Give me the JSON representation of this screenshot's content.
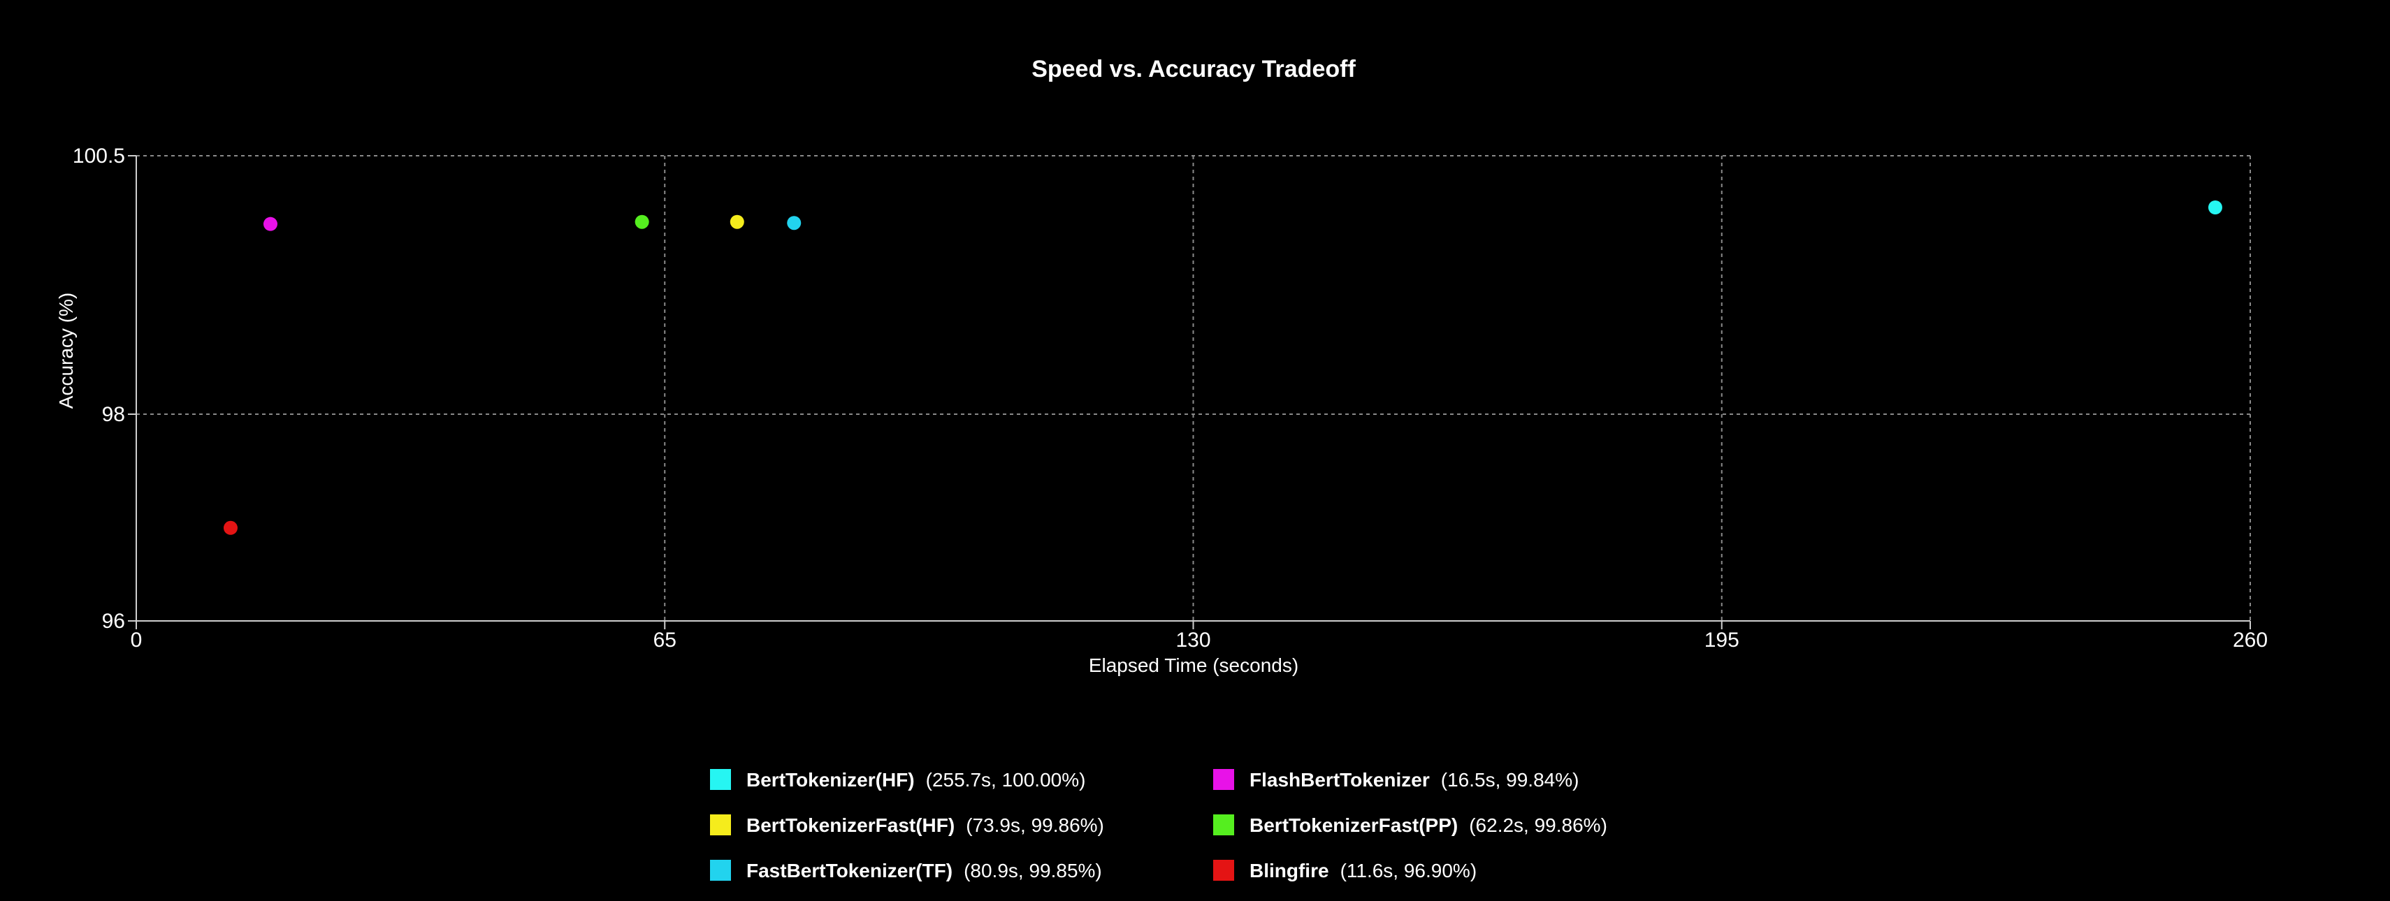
{
  "chart_data": {
    "type": "scatter",
    "title": "Speed vs. Accuracy Tradeoff",
    "xlabel": "Elapsed Time (seconds)",
    "ylabel": "Accuracy (%)",
    "xlim": [
      0,
      260
    ],
    "ylim": [
      96,
      100.5
    ],
    "xticks": [
      0,
      65,
      130,
      195,
      260
    ],
    "yticks": [
      96,
      98,
      100.5
    ],
    "grid": true,
    "legend_position": "bottom-center",
    "series": [
      {
        "name": "BertTokenizer(HF)",
        "detail": "(255.7s, 100.00%)",
        "x": 255.7,
        "y": 100.0,
        "color": "#26f5f2"
      },
      {
        "name": "FlashBertTokenizer",
        "detail": "(16.5s, 99.84%)",
        "x": 16.5,
        "y": 99.84,
        "color": "#e812e8"
      },
      {
        "name": "BertTokenizerFast(HF)",
        "detail": "(73.9s, 99.86%)",
        "x": 73.9,
        "y": 99.86,
        "color": "#f5ec1c"
      },
      {
        "name": "BertTokenizerFast(PP)",
        "detail": "(62.2s, 99.86%)",
        "x": 62.2,
        "y": 99.86,
        "color": "#55ee1f"
      },
      {
        "name": "FastBertTokenizer(TF)",
        "detail": "(80.9s, 99.85%)",
        "x": 80.9,
        "y": 99.85,
        "color": "#22d3ee"
      },
      {
        "name": "Blingfire",
        "detail": "(11.6s, 96.90%)",
        "x": 11.6,
        "y": 96.9,
        "color": "#e41414"
      }
    ]
  }
}
